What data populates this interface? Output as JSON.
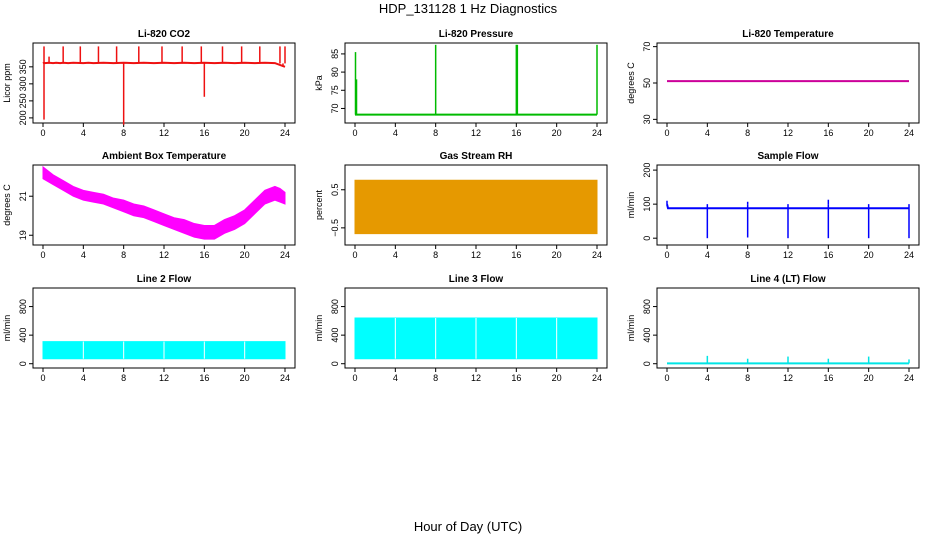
{
  "figure": {
    "title": "HDP_131128  1 Hz Diagnostics",
    "xlabel": "Hour of Day (UTC)"
  },
  "chart_data": [
    {
      "id": "co2",
      "type": "line",
      "title": "Li-820 CO2",
      "ylabel": "Licor ppm",
      "color": "#ee1111",
      "xlim": [
        0,
        24
      ],
      "ylim": [
        185,
        420
      ],
      "xticks": [
        0,
        4,
        8,
        12,
        16,
        20,
        24
      ],
      "yticks": [
        200,
        250,
        300,
        350
      ],
      "x": [
        0,
        0.1,
        0.2,
        0.6,
        1,
        1.3,
        1.7,
        2,
        2.5,
        3,
        4,
        4.5,
        5,
        6,
        7,
        8,
        9,
        10,
        11,
        12,
        13,
        14,
        15,
        16,
        17,
        18,
        19,
        20,
        21,
        22,
        23,
        24
      ],
      "values": [
        360,
        362,
        361,
        362,
        361,
        362,
        361,
        362,
        361,
        362,
        361,
        362,
        361,
        362,
        361,
        362,
        361,
        362,
        361,
        362,
        361,
        362,
        361,
        362,
        361,
        362,
        361,
        362,
        361,
        362,
        361,
        350
      ],
      "spikes_up": [
        [
          0.1,
          410
        ],
        [
          0.6,
          380
        ],
        [
          2,
          410
        ],
        [
          3.7,
          410
        ],
        [
          5.5,
          410
        ],
        [
          7.3,
          410
        ],
        [
          9.5,
          410
        ],
        [
          11.8,
          410
        ],
        [
          13.8,
          410
        ],
        [
          15.7,
          410
        ],
        [
          17.8,
          410
        ],
        [
          19.7,
          410
        ],
        [
          21.5,
          410
        ],
        [
          23.5,
          410
        ],
        [
          24,
          410
        ]
      ],
      "spikes_down": [
        [
          0.1,
          195
        ],
        [
          8,
          180
        ],
        [
          16,
          262
        ],
        [
          23.8,
          350
        ]
      ]
    },
    {
      "id": "pressure",
      "type": "line",
      "title": "Li-820 Pressure",
      "ylabel": "kPa",
      "color": "#00bb00",
      "xlim": [
        0,
        24
      ],
      "ylim": [
        66,
        88
      ],
      "xticks": [
        0,
        4,
        8,
        12,
        16,
        20,
        24
      ],
      "yticks": [
        70,
        75,
        80,
        85
      ],
      "x": [
        0,
        24
      ],
      "values": [
        68.3,
        68.3
      ],
      "spikes_up": [
        [
          0.05,
          85.5
        ],
        [
          0.15,
          78
        ],
        [
          8,
          87.5
        ],
        [
          16,
          87.5
        ],
        [
          16.1,
          87.5
        ],
        [
          24,
          87.5
        ]
      ]
    },
    {
      "id": "licor-temp",
      "type": "line",
      "title": "Li-820 Temperature",
      "ylabel": "degrees C",
      "color": "#cc0099",
      "xlim": [
        0,
        24
      ],
      "ylim": [
        28,
        72
      ],
      "xticks": [
        0,
        4,
        8,
        12,
        16,
        20,
        24
      ],
      "yticks": [
        30,
        50,
        70
      ],
      "x": [
        0,
        24
      ],
      "values": [
        51,
        51
      ]
    },
    {
      "id": "box-temp",
      "type": "band",
      "title": "Ambient Box Temperature",
      "ylabel": "degrees C",
      "color": "#ff00ff",
      "xlim": [
        0,
        24
      ],
      "ylim": [
        18.5,
        22.6
      ],
      "xticks": [
        0,
        4,
        8,
        12,
        16,
        20,
        24
      ],
      "yticks": [
        19,
        21
      ],
      "x": [
        0,
        1,
        2,
        3,
        4,
        5,
        6,
        7,
        8,
        9,
        10,
        11,
        12,
        13,
        14,
        15,
        16,
        17,
        18,
        19,
        20,
        21,
        22,
        23,
        23.5,
        24
      ],
      "lower": [
        21.9,
        21.6,
        21.3,
        21.0,
        20.8,
        20.7,
        20.6,
        20.4,
        20.2,
        20.0,
        19.9,
        19.7,
        19.5,
        19.3,
        19.1,
        18.9,
        18.8,
        18.8,
        19.1,
        19.3,
        19.6,
        20.1,
        20.6,
        20.8,
        20.7,
        20.6
      ],
      "upper": [
        22.5,
        22.1,
        21.8,
        21.5,
        21.3,
        21.2,
        21.1,
        20.9,
        20.8,
        20.6,
        20.5,
        20.3,
        20.1,
        19.9,
        19.8,
        19.6,
        19.5,
        19.5,
        19.8,
        20.0,
        20.3,
        20.8,
        21.3,
        21.5,
        21.4,
        21.2
      ]
    },
    {
      "id": "rh",
      "type": "band",
      "title": "Gas Stream RH",
      "ylabel": "percent",
      "color": "#e69900",
      "xlim": [
        0,
        24
      ],
      "ylim": [
        -0.95,
        1.15
      ],
      "xticks": [
        0,
        4,
        8,
        12,
        16,
        20,
        24
      ],
      "yticks": [
        -0.5,
        0.5
      ],
      "x": [
        0,
        24
      ],
      "lower": [
        -0.65,
        -0.65
      ],
      "upper": [
        0.75,
        0.75
      ]
    },
    {
      "id": "sample-flow",
      "type": "line",
      "title": "Sample Flow",
      "ylabel": "ml/min",
      "color": "#0000ff",
      "xlim": [
        0,
        24
      ],
      "ylim": [
        -20,
        215
      ],
      "xticks": [
        0,
        4,
        8,
        12,
        16,
        20,
        24
      ],
      "yticks": [
        0,
        100,
        200
      ],
      "x": [
        0,
        0.1,
        24
      ],
      "values": [
        100,
        88,
        88
      ],
      "spikes_up": [
        [
          0,
          110
        ],
        [
          8,
          107
        ],
        [
          16,
          113
        ]
      ],
      "spikes_down": [
        [
          4,
          0
        ],
        [
          8,
          2
        ],
        [
          12,
          0
        ],
        [
          16,
          0
        ],
        [
          20,
          0
        ],
        [
          24,
          0
        ]
      ]
    },
    {
      "id": "line2-flow",
      "type": "band",
      "title": "Line 2 Flow",
      "ylabel": "ml/min",
      "color": "#00ffff",
      "xlim": [
        0,
        24
      ],
      "ylim": [
        -60,
        1060
      ],
      "xticks": [
        0,
        4,
        8,
        12,
        16,
        20,
        24
      ],
      "yticks": [
        0,
        400,
        800
      ],
      "x": [
        0,
        24
      ],
      "lower": [
        70,
        70
      ],
      "upper": [
        310,
        310
      ]
    },
    {
      "id": "line3-flow",
      "type": "band",
      "title": "Line 3 Flow",
      "ylabel": "ml/min",
      "color": "#00ffff",
      "xlim": [
        0,
        24
      ],
      "ylim": [
        -60,
        1060
      ],
      "xticks": [
        0,
        4,
        8,
        12,
        16,
        20,
        24
      ],
      "yticks": [
        0,
        400,
        800
      ],
      "x": [
        0,
        24
      ],
      "lower": [
        70,
        70
      ],
      "upper": [
        640,
        640
      ]
    },
    {
      "id": "line4-flow",
      "type": "line",
      "title": "Line 4 (LT) Flow",
      "ylabel": "ml/min",
      "color": "#00e5e5",
      "xlim": [
        0,
        24
      ],
      "ylim": [
        -60,
        1060
      ],
      "xticks": [
        0,
        4,
        8,
        12,
        16,
        20,
        24
      ],
      "yticks": [
        0,
        400,
        800
      ],
      "x": [
        0,
        24
      ],
      "values": [
        5,
        5
      ],
      "spikes_up": [
        [
          4,
          110
        ],
        [
          8,
          70
        ],
        [
          12,
          100
        ],
        [
          16,
          70
        ],
        [
          20,
          100
        ],
        [
          24,
          60
        ]
      ]
    }
  ]
}
